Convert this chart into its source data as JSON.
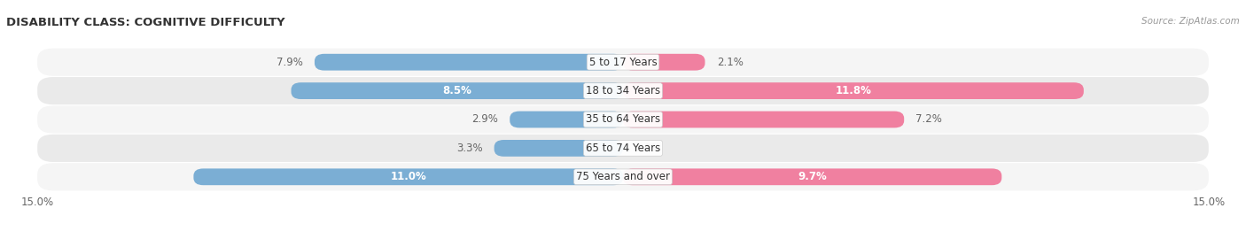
{
  "title": "DISABILITY CLASS: COGNITIVE DIFFICULTY",
  "source_text": "Source: ZipAtlas.com",
  "categories": [
    "5 to 17 Years",
    "18 to 34 Years",
    "35 to 64 Years",
    "65 to 74 Years",
    "75 Years and over"
  ],
  "male_values": [
    7.9,
    8.5,
    2.9,
    3.3,
    11.0
  ],
  "female_values": [
    2.1,
    11.8,
    7.2,
    0.0,
    9.7
  ],
  "male_color": "#7baed4",
  "female_color": "#f080a0",
  "row_bg_odd": "#f5f5f5",
  "row_bg_even": "#eaeaea",
  "max_val": 15.0,
  "label_fontsize": 8.5,
  "title_fontsize": 9.5,
  "bar_height": 0.58,
  "background_color": "#ffffff",
  "inside_label_threshold": 8.0
}
